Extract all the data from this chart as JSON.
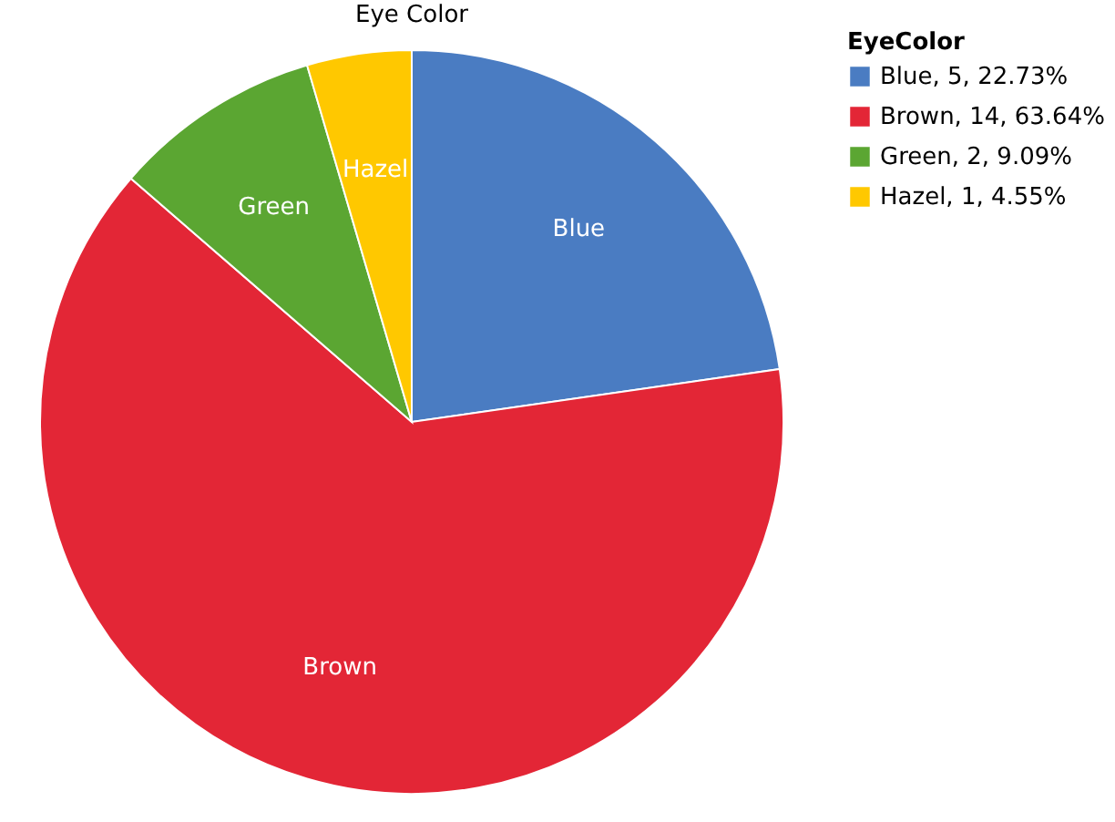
{
  "chart_data": {
    "type": "pie",
    "title": "Eye Color",
    "legend_title": "EyeColor",
    "categories": [
      "Blue, 5, 22.73%",
      "Brown, 14, 63.64%",
      "Green, 2, 9.09%",
      "Hazel, 1, 4.55%"
    ],
    "values": [
      5,
      14,
      2,
      1
    ],
    "colors": [
      "#4a7cc2",
      "#e32636",
      "#5ba632",
      "#ffc800"
    ],
    "value_labels": [
      "Blue",
      "Brown",
      "Green",
      "Hazel"
    ],
    "legend": "right"
  }
}
